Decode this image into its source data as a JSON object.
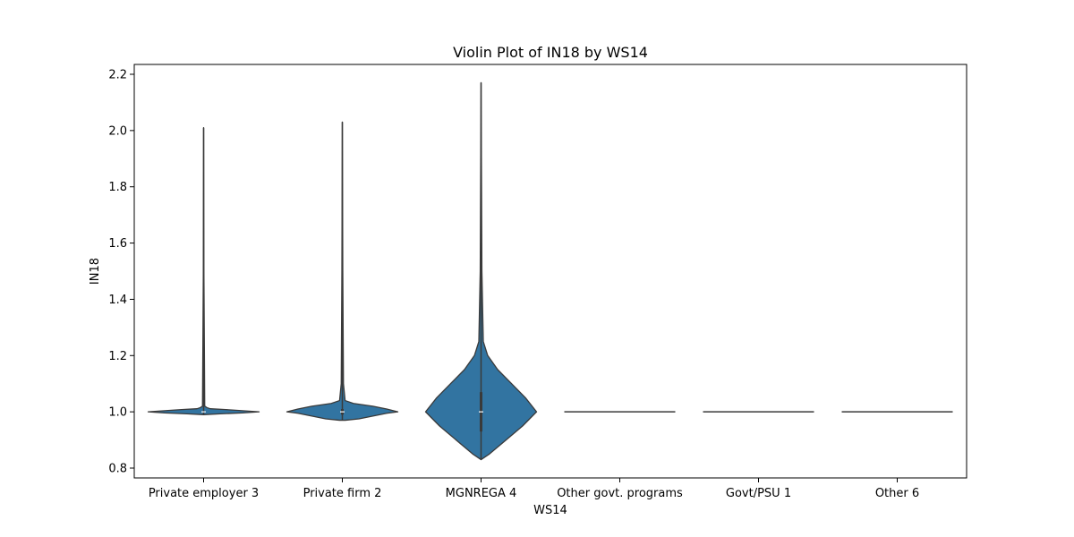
{
  "chart_data": {
    "type": "violin",
    "title": "Violin Plot of IN18 by WS14",
    "xlabel": "WS14",
    "ylabel": "IN18",
    "categories": [
      "Private employer 3",
      "Private firm 2",
      "MGNREGA 4",
      "Other govt. programs",
      "Govt/PSU 1",
      "Other 6"
    ],
    "ylim": [
      0.765,
      2.235
    ],
    "yticks": [
      0.8,
      1.0,
      1.2,
      1.4,
      1.6,
      1.8,
      2.0,
      2.2
    ],
    "ytick_labels": [
      "0.8",
      "1.0",
      "1.2",
      "1.4",
      "1.6",
      "1.8",
      "2.0",
      "2.2"
    ],
    "grid": false,
    "legend": "none",
    "violin_color": "#3274a1",
    "edge_color": "#3a3a3a",
    "series": [
      {
        "category": "Private employer 3",
        "min": 0.99,
        "max": 2.01,
        "median": 1.0,
        "q1": 1.0,
        "q3": 1.0,
        "profile": [
          [
            0.99,
            0.0
          ],
          [
            0.993,
            0.3
          ],
          [
            0.996,
            0.7
          ],
          [
            1.0,
            1.0
          ],
          [
            1.004,
            0.7
          ],
          [
            1.008,
            0.4
          ],
          [
            1.011,
            0.12
          ],
          [
            1.015,
            0.06
          ],
          [
            1.02,
            0.02
          ],
          [
            1.5,
            0.005
          ],
          [
            2.01,
            0.0
          ]
        ]
      },
      {
        "category": "Private firm 2",
        "min": 0.97,
        "max": 2.03,
        "median": 1.0,
        "q1": 0.99,
        "q3": 1.01,
        "profile": [
          [
            0.97,
            0.05
          ],
          [
            0.975,
            0.3
          ],
          [
            0.985,
            0.55
          ],
          [
            0.995,
            0.8
          ],
          [
            1.0,
            1.0
          ],
          [
            1.01,
            0.8
          ],
          [
            1.02,
            0.55
          ],
          [
            1.03,
            0.2
          ],
          [
            1.04,
            0.05
          ],
          [
            1.1,
            0.02
          ],
          [
            1.5,
            0.008
          ],
          [
            2.03,
            0.0
          ]
        ]
      },
      {
        "category": "MGNREGA 4",
        "min": 0.83,
        "max": 2.17,
        "median": 1.0,
        "q1": 0.93,
        "q3": 1.07,
        "profile": [
          [
            0.83,
            0.0
          ],
          [
            0.85,
            0.15
          ],
          [
            0.9,
            0.45
          ],
          [
            0.95,
            0.75
          ],
          [
            1.0,
            1.0
          ],
          [
            1.05,
            0.8
          ],
          [
            1.1,
            0.55
          ],
          [
            1.15,
            0.3
          ],
          [
            1.2,
            0.12
          ],
          [
            1.25,
            0.04
          ],
          [
            1.5,
            0.015
          ],
          [
            2.17,
            0.0
          ]
        ]
      },
      {
        "category": "Other govt. programs",
        "min": 1.0,
        "max": 1.0,
        "median": 1.0,
        "q1": 1.0,
        "q3": 1.0,
        "profile": []
      },
      {
        "category": "Govt/PSU 1",
        "min": 1.0,
        "max": 1.0,
        "median": 1.0,
        "q1": 1.0,
        "q3": 1.0,
        "profile": []
      },
      {
        "category": "Other 6",
        "min": 1.0,
        "max": 1.0,
        "median": 1.0,
        "q1": 1.0,
        "q3": 1.0,
        "profile": []
      }
    ]
  }
}
